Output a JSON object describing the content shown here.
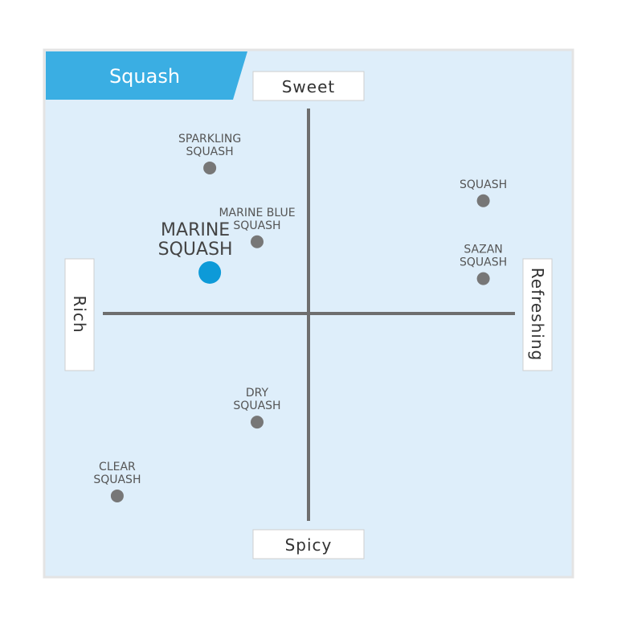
{
  "title": "Squash",
  "colors": {
    "panel_bg": "#deeefa",
    "banner": "#3aaee3",
    "axis": "#6e6e6e",
    "point": "#777777",
    "highlight": "#0d9ad8"
  },
  "chart_data": {
    "type": "scatter",
    "title": "Squash",
    "axis_labels": {
      "top": "Sweet",
      "bottom": "Spicy",
      "left": "Rich",
      "right": "Refreshing"
    },
    "xlim": [
      -10,
      10
    ],
    "ylim": [
      -10,
      10
    ],
    "grid": false,
    "points": [
      {
        "label": [
          "SPARKLING",
          "SQUASH"
        ],
        "x": -4.8,
        "y": 7.1,
        "highlight": false
      },
      {
        "label": [
          "MARINE BLUE",
          "SQUASH"
        ],
        "x": -2.5,
        "y": 3.5,
        "highlight": false
      },
      {
        "label": [
          "MARINE",
          "SQUASH"
        ],
        "x": -4.8,
        "y": 2.0,
        "highlight": true
      },
      {
        "label": [
          "SQUASH"
        ],
        "x": 8.5,
        "y": 5.5,
        "highlight": false
      },
      {
        "label": [
          "SAZAN",
          "SQUASH"
        ],
        "x": 8.5,
        "y": 1.7,
        "highlight": false
      },
      {
        "label": [
          "DRY",
          "SQUASH"
        ],
        "x": -2.5,
        "y": -5.3,
        "highlight": false
      },
      {
        "label": [
          "CLEAR",
          "SQUASH"
        ],
        "x": -9.3,
        "y": -8.9,
        "highlight": false
      }
    ]
  }
}
